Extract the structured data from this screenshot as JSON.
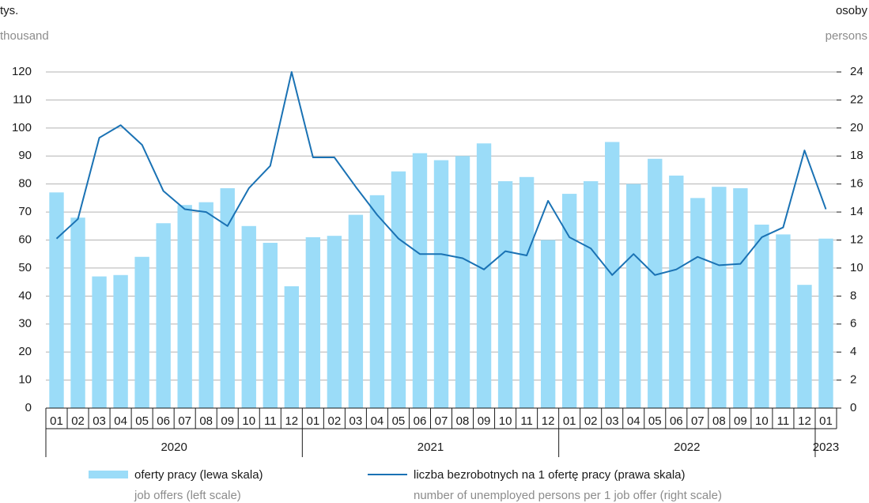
{
  "chart_data": {
    "type": "bar_line",
    "left_axis_label": "tys.",
    "left_axis_label_en": "thousand",
    "right_axis_label": "osoby",
    "right_axis_label_en": "persons",
    "categories": [
      "01",
      "02",
      "03",
      "04",
      "05",
      "06",
      "07",
      "08",
      "09",
      "10",
      "11",
      "12",
      "01",
      "02",
      "03",
      "04",
      "05",
      "06",
      "07",
      "08",
      "09",
      "10",
      "11",
      "12",
      "01",
      "02",
      "03",
      "04",
      "05",
      "06",
      "07",
      "08",
      "09",
      "10",
      "11",
      "12",
      "01"
    ],
    "years": [
      "2020",
      "2021",
      "2022",
      "2023"
    ],
    "series": [
      {
        "name": "oferty pracy (lewa skala)",
        "name_en": "job offers (left scale)",
        "type": "bar",
        "color": "#9bdcf8",
        "values": [
          77,
          68,
          47,
          47.5,
          54,
          66,
          72.5,
          73.5,
          78.5,
          65,
          59,
          43.5,
          61,
          61.5,
          69,
          76,
          84.5,
          91,
          88.5,
          90,
          94.5,
          81,
          82.5,
          60,
          76.5,
          81,
          95,
          80,
          89,
          83,
          75,
          79,
          78.5,
          65.5,
          62,
          44,
          60.5
        ]
      },
      {
        "name": "liczba bezrobotnych na 1 ofertę pracy (prawa skala)",
        "name_en": "number of unemployed persons per 1 job offer (right scale)",
        "type": "line",
        "axis": "y2",
        "color": "#1a72b4",
        "values": [
          12.1,
          13.5,
          19.3,
          20.2,
          18.8,
          15.5,
          14.2,
          14.0,
          13.0,
          15.7,
          17.3,
          24.0,
          17.9,
          17.9,
          15.8,
          13.8,
          12.1,
          11.0,
          11.0,
          10.7,
          9.9,
          11.2,
          10.9,
          14.8,
          12.2,
          11.4,
          9.5,
          11.0,
          9.5,
          9.9,
          10.8,
          10.2,
          10.3,
          12.2,
          12.9,
          18.4,
          14.2
        ]
      }
    ],
    "ylim": [
      0,
      120
    ],
    "yticks": [
      0,
      10,
      20,
      30,
      40,
      50,
      60,
      70,
      80,
      90,
      100,
      110,
      120
    ],
    "y2lim": [
      0,
      24
    ],
    "y2ticks": [
      0,
      2,
      4,
      6,
      8,
      10,
      12,
      14,
      16,
      18,
      20,
      22,
      24
    ],
    "grid": true
  }
}
